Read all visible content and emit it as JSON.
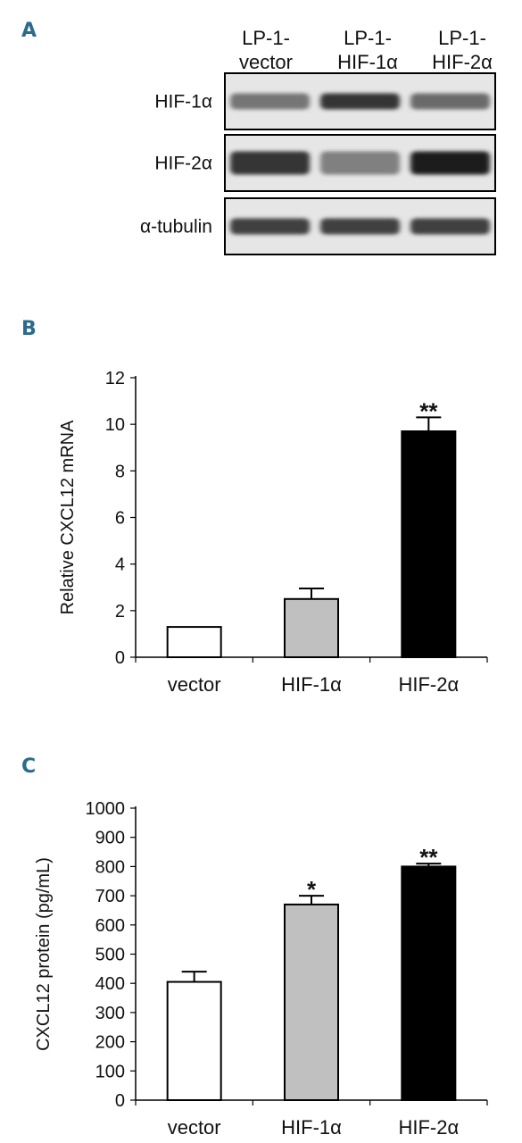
{
  "figure": {
    "panels": {
      "a": {
        "letter": "A"
      },
      "b": {
        "letter": "B"
      },
      "c": {
        "letter": "C"
      }
    }
  },
  "western_blot": {
    "columns": [
      {
        "line1": "LP-1-",
        "line2": "vector"
      },
      {
        "line1": "LP-1-",
        "line2": "HIF-1α"
      },
      {
        "line1": "LP-1-",
        "line2": "HIF-2α"
      }
    ],
    "rows": [
      {
        "label": "HIF-1α",
        "intensities": [
          0.55,
          0.85,
          0.6
        ]
      },
      {
        "label": "HIF-2α",
        "intensities": [
          0.85,
          0.5,
          0.95
        ]
      },
      {
        "label": "α-tubulin",
        "intensities": [
          0.8,
          0.8,
          0.8
        ]
      }
    ]
  },
  "chart_data": [
    {
      "type": "bar",
      "panel": "B",
      "categories": [
        "vector",
        "HIF-1α",
        "HIF-2α"
      ],
      "values": [
        1.3,
        2.5,
        9.7
      ],
      "errors": [
        0,
        0.45,
        0.6
      ],
      "significance": [
        "",
        "",
        "**"
      ],
      "bar_colors": [
        "#ffffff",
        "#c0c0c0",
        "#000000"
      ],
      "ylabel": "Relative CXCL12 mRNA",
      "xlabel": "",
      "ylim": [
        0,
        12
      ],
      "yticks": [
        0,
        2,
        4,
        6,
        8,
        10,
        12
      ],
      "grid": false
    },
    {
      "type": "bar",
      "panel": "C",
      "categories": [
        "vector",
        "HIF-1α",
        "HIF-2α"
      ],
      "values": [
        405,
        670,
        800
      ],
      "errors": [
        35,
        30,
        10
      ],
      "significance": [
        "",
        "*",
        "**"
      ],
      "bar_colors": [
        "#ffffff",
        "#c0c0c0",
        "#000000"
      ],
      "ylabel": "CXCL12 protein (pg/mL)",
      "xlabel": "",
      "ylim": [
        0,
        1000
      ],
      "yticks": [
        0,
        100,
        200,
        300,
        400,
        500,
        600,
        700,
        800,
        900,
        1000
      ],
      "grid": false
    }
  ]
}
